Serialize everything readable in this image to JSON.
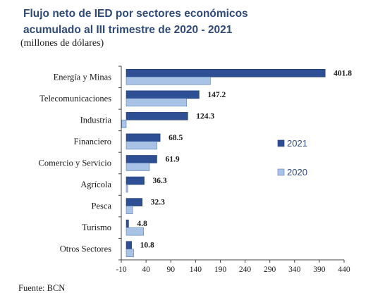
{
  "source": "Fuente: BCN",
  "chart_data": {
    "type": "bar",
    "orientation": "horizontal",
    "title_line1": "Flujo neto de IED por sectores económicos",
    "title_line2": "acumulado al III trimestre de 2020 - 2021",
    "subtitle": "(millones de dólares)",
    "categories": [
      "Energía y Minas",
      "Telecomunicaciones",
      "Industria",
      "Financiero",
      "Comercio y Servicio",
      "Agrícola",
      "Pesca",
      "Turismo",
      "Otros Sectores"
    ],
    "series": [
      {
        "name": "2021",
        "color": "#2e4f93",
        "values": [
          401.8,
          147.2,
          124.3,
          68.5,
          61.9,
          36.3,
          32.3,
          4.8,
          10.8
        ],
        "labels": [
          "401.8",
          "147.2",
          "124.3",
          "68.5",
          "61.9",
          "36.3",
          "32.3",
          "4.8",
          "10.8"
        ]
      },
      {
        "name": "2020",
        "color": "#a9c3e6",
        "values": [
          170,
          122,
          -9,
          62,
          47,
          3,
          13,
          35,
          15
        ]
      }
    ],
    "xlim": [
      -10,
      440
    ],
    "xticks": [
      -10,
      40,
      90,
      140,
      190,
      240,
      290,
      340,
      390,
      440
    ],
    "xtick_labels": [
      "-10",
      "40",
      "90",
      "140",
      "190",
      "240",
      "290",
      "340",
      "390",
      "440"
    ],
    "legend_position": "right",
    "grid": false
  }
}
